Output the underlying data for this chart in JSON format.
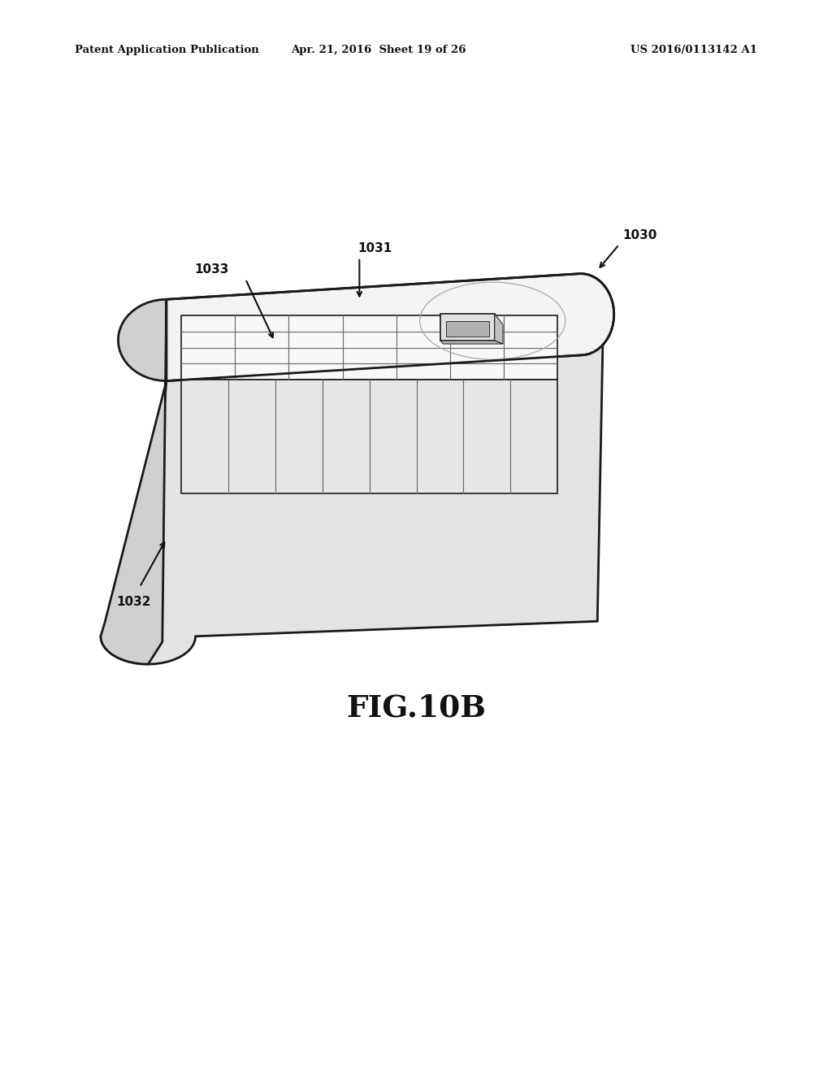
{
  "header_left": "Patent Application Publication",
  "header_mid": "Apr. 21, 2016  Sheet 19 of 26",
  "header_right": "US 2016/0113142 A1",
  "fig_label": "FIG.10B",
  "bg_color": "#ffffff",
  "line_color": "#1a1a1a",
  "lw_main": 2.0,
  "lw_inner": 1.2,
  "lw_grid": 0.85
}
